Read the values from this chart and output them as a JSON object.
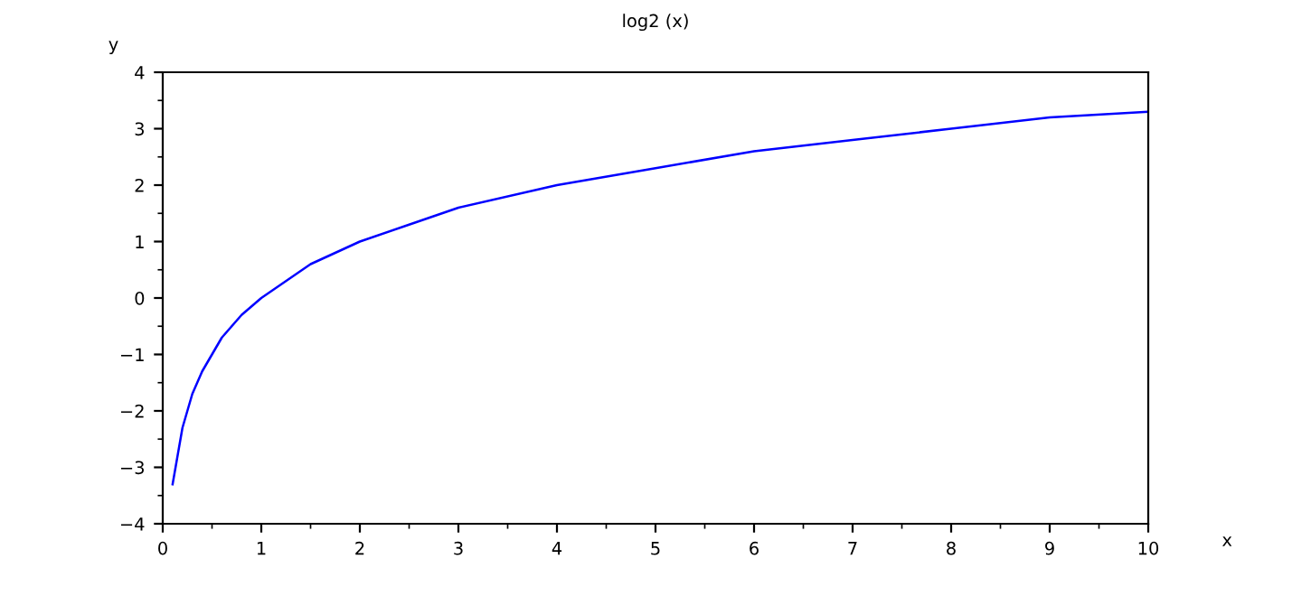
{
  "chart_data": {
    "type": "line",
    "title": "log2 (x)",
    "xlabel": "x",
    "ylabel": "y",
    "x": [
      0.1,
      0.2,
      0.3,
      0.4,
      0.5,
      0.6,
      0.8,
      1,
      1.5,
      2,
      2.5,
      3,
      4,
      5,
      6,
      7,
      8,
      9,
      10
    ],
    "series": [
      {
        "color": "#0000ff",
        "values": [
          -3.3,
          -2.3,
          -1.7,
          -1.3,
          -1.0,
          -0.7,
          -0.3,
          0,
          0.6,
          1,
          1.3,
          1.6,
          2,
          2.3,
          2.6,
          2.8,
          3,
          3.2,
          3.3
        ]
      }
    ],
    "xlim": [
      0,
      10
    ],
    "ylim": [
      -4,
      4
    ],
    "xticks": [
      0,
      1,
      2,
      3,
      4,
      5,
      6,
      7,
      8,
      9,
      10
    ],
    "yticks": [
      -4,
      -3,
      -2,
      -1,
      0,
      1,
      2,
      3,
      4
    ],
    "grid": false,
    "legend": false,
    "marker": "none",
    "line_style": "solid"
  }
}
